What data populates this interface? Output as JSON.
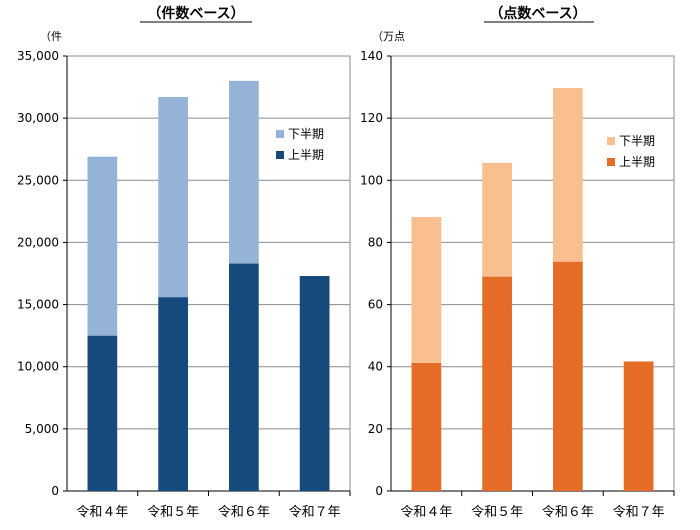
{
  "chart_data": [
    {
      "type": "bar",
      "stacked": true,
      "title": "（件数ベース）",
      "unit_label": "（件",
      "categories": [
        "令和４年",
        "令和５年",
        "令和６年",
        "令和７年"
      ],
      "ylim": [
        0,
        35000
      ],
      "yticks": [
        "0",
        "5,000",
        "10,000",
        "15,000",
        "20,000",
        "25,000",
        "30,000",
        "35,000"
      ],
      "grid": true,
      "legend_position": "right",
      "series": [
        {
          "name": "上半期",
          "color": "#174a7c",
          "values": [
            12500,
            15600,
            18300,
            17300
          ]
        },
        {
          "name": "下半期",
          "color": "#95b3d7",
          "values": [
            14400,
            16100,
            14700,
            0
          ]
        }
      ]
    },
    {
      "type": "bar",
      "stacked": true,
      "title": "（点数ベース）",
      "unit_label": "（万点",
      "categories": [
        "令和４年",
        "令和５年",
        "令和６年",
        "令和７年"
      ],
      "ylim": [
        0,
        140
      ],
      "yticks": [
        "0",
        "20",
        "40",
        "60",
        "80",
        "100",
        "120",
        "140"
      ],
      "grid": true,
      "legend_position": "right",
      "series": [
        {
          "name": "上半期",
          "color": "#e46c27",
          "values": [
            41.2,
            69.0,
            73.8,
            41.7
          ]
        },
        {
          "name": "下半期",
          "color": "#fabf8f",
          "values": [
            47.0,
            36.6,
            55.9,
            0
          ]
        }
      ]
    }
  ]
}
